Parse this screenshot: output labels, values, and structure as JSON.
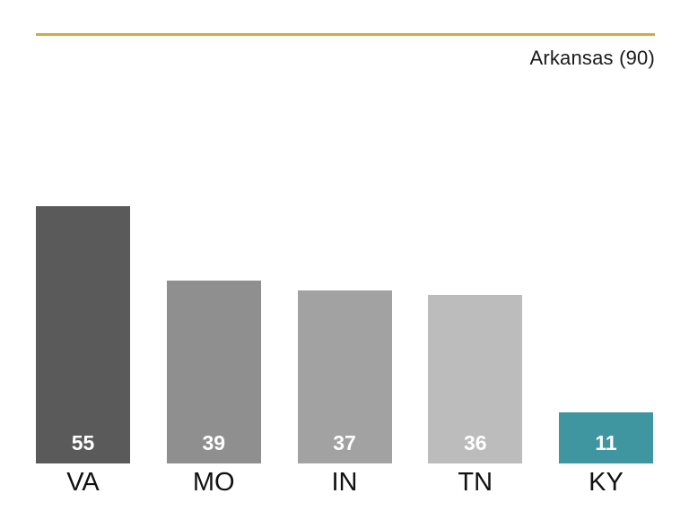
{
  "header": {
    "title": "Arkansas (90)",
    "rule_color": "#d2aa40"
  },
  "chart_data": {
    "type": "bar",
    "title": "Arkansas (90)",
    "categories": [
      "VA",
      "MO",
      "IN",
      "TN",
      "KY"
    ],
    "values": [
      55,
      39,
      37,
      36,
      11
    ],
    "bar_colors": [
      "#5a5a5a",
      "#8f8f8f",
      "#a2a2a2",
      "#bcbcbc",
      "#3f96a0"
    ],
    "value_label_color": "#ffffff",
    "value_labels_position": "inside-bottom",
    "xlabel": "",
    "ylabel": "",
    "ylim": [
      0,
      55
    ],
    "grid": false,
    "legend": false
  }
}
